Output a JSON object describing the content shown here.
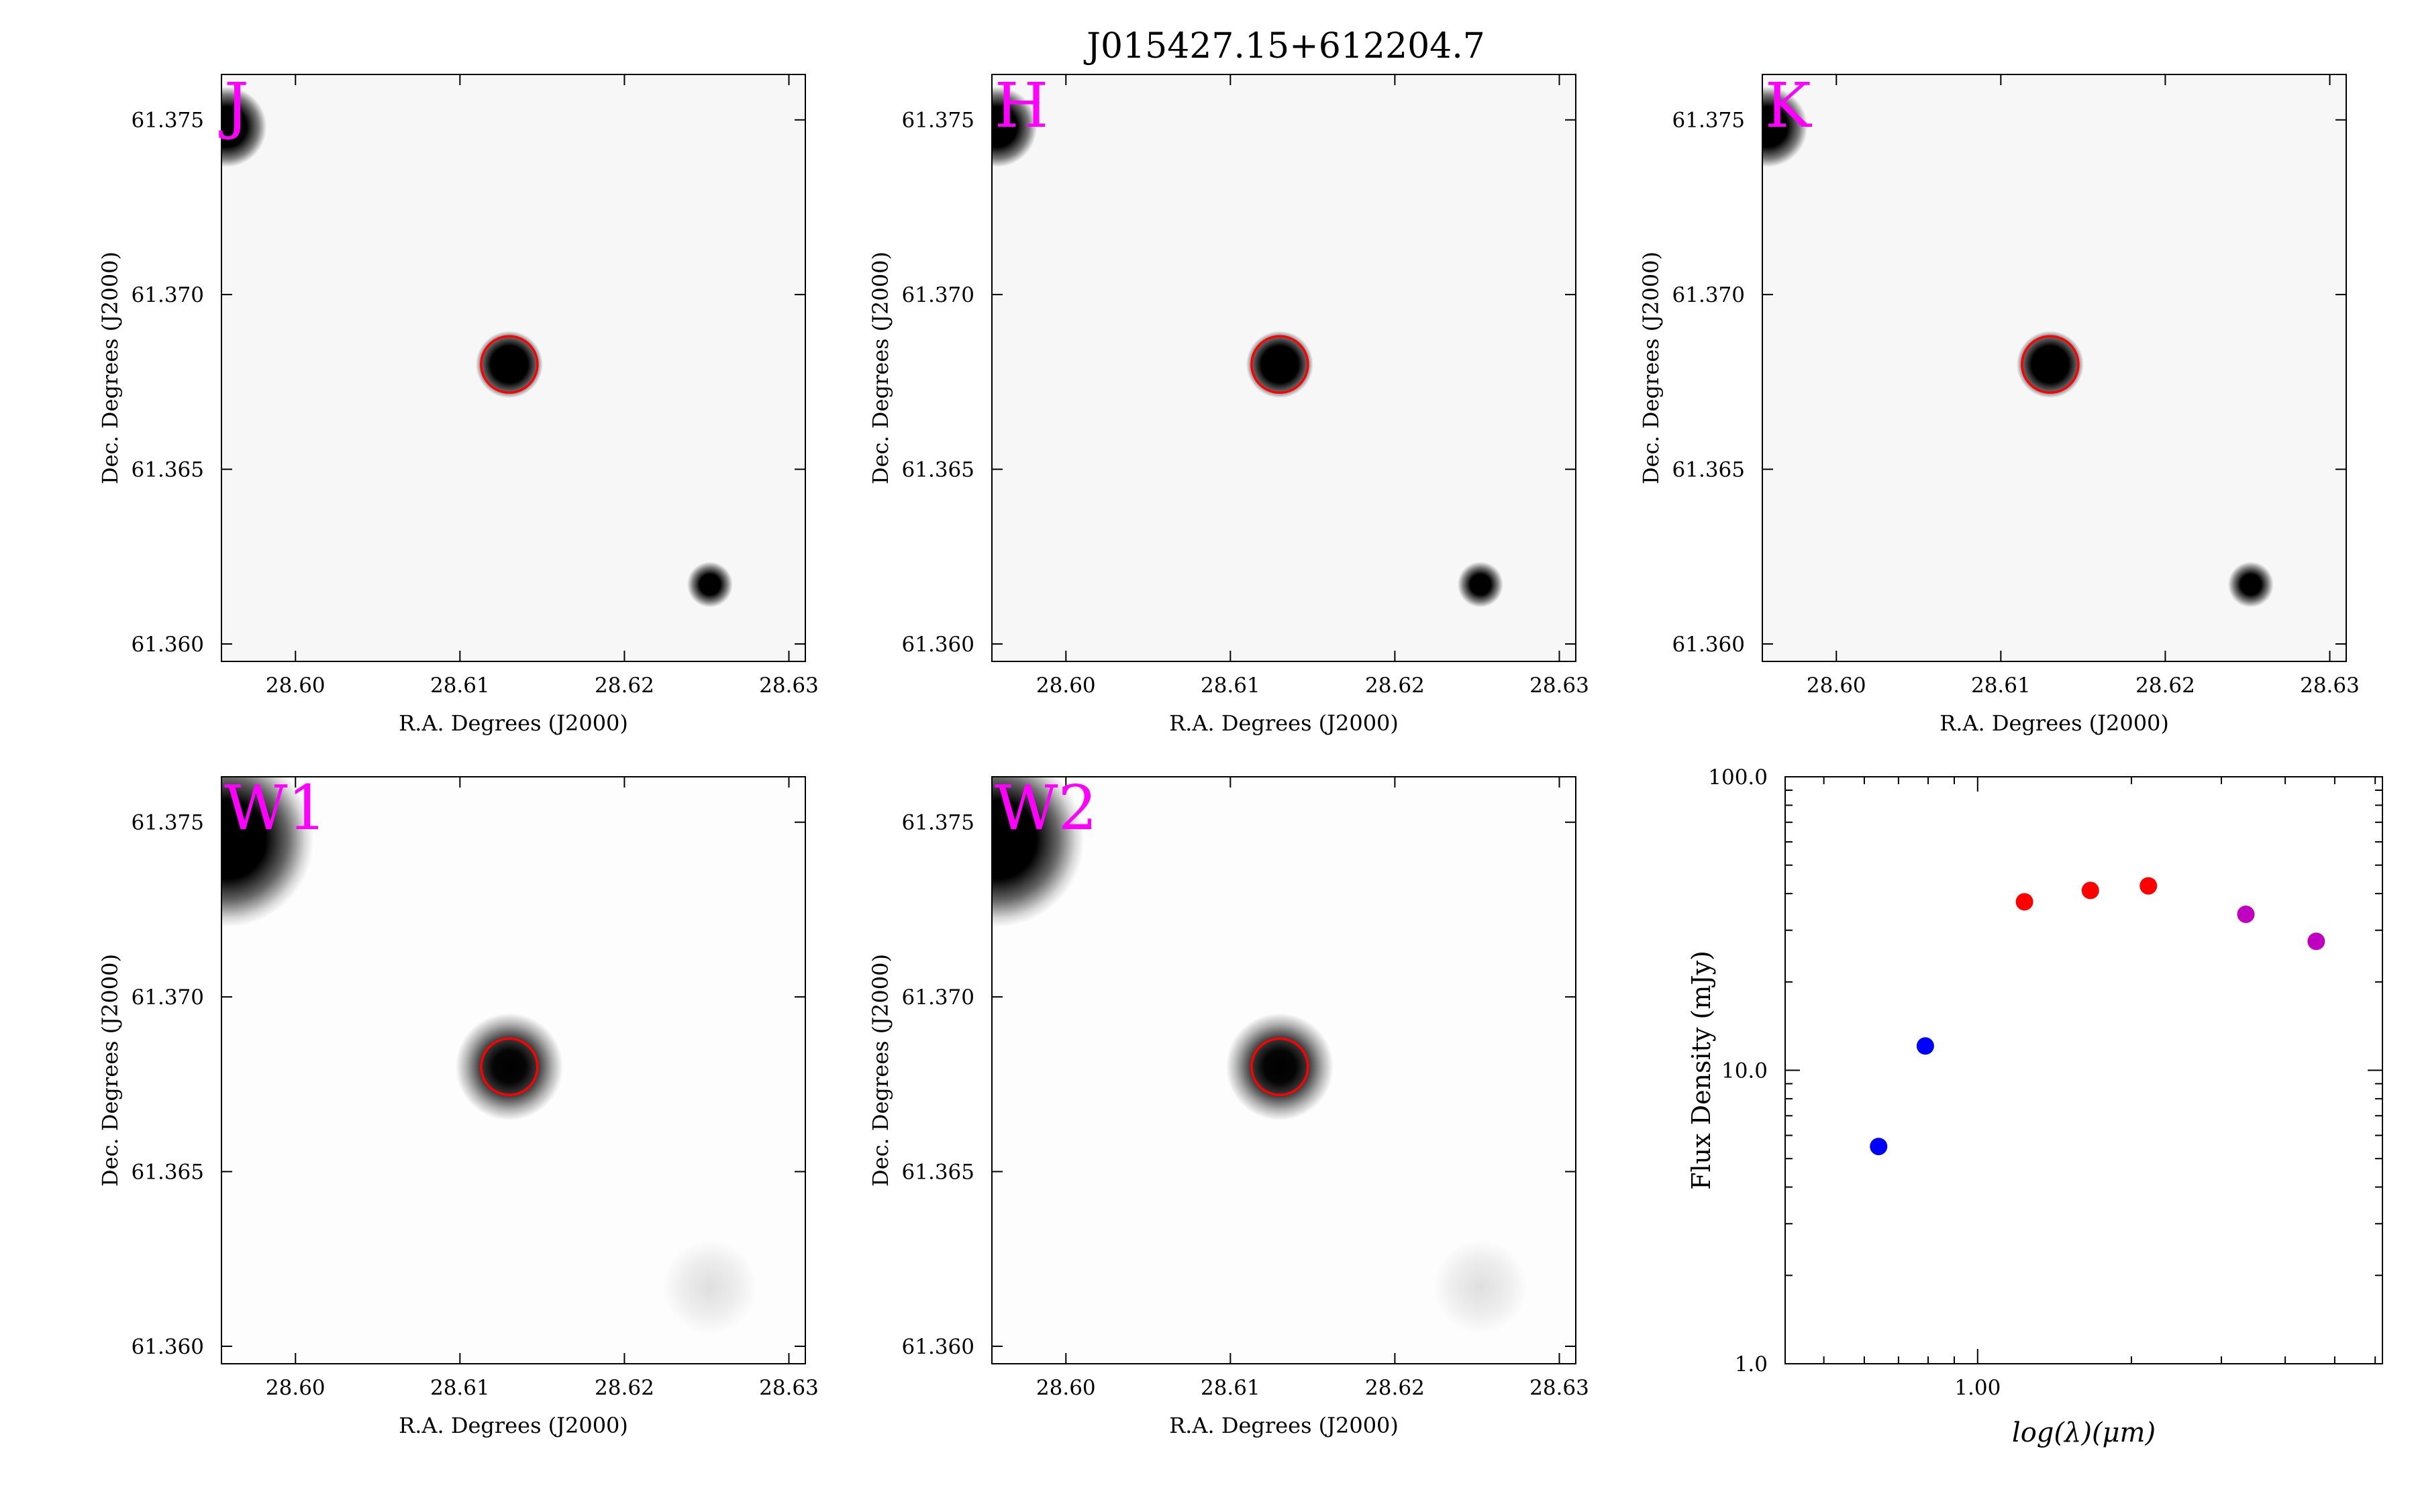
{
  "title": "J015427.15+612204.7",
  "image_axes": {
    "xlabel": "R.A. Degrees (J2000)",
    "ylabel": "Dec. Degrees (J2000)",
    "xticks": [
      "28.60",
      "28.61",
      "28.62",
      "28.63"
    ],
    "xtick_values": [
      28.6,
      28.61,
      28.62,
      28.63
    ],
    "yticks": [
      "61.375",
      "61.370",
      "61.365",
      "61.360"
    ],
    "ytick_values": [
      61.375,
      61.37,
      61.365,
      61.36
    ],
    "xlim": [
      28.5955,
      28.631
    ],
    "ylim": [
      61.3595,
      61.3763
    ]
  },
  "band_color": "#ff00ff",
  "aperture_color": "#ff0000",
  "panels": [
    {
      "band": "J",
      "style": "2mass",
      "sources": [
        {
          "ra": 28.613,
          "dec": 61.368,
          "kind": "target"
        },
        {
          "ra": 28.5958,
          "dec": 61.3748,
          "kind": "corner"
        },
        {
          "ra": 28.6252,
          "dec": 61.3617,
          "kind": "small"
        }
      ]
    },
    {
      "band": "H",
      "style": "2mass",
      "sources": [
        {
          "ra": 28.613,
          "dec": 61.368,
          "kind": "target"
        },
        {
          "ra": 28.5958,
          "dec": 61.3748,
          "kind": "corner"
        },
        {
          "ra": 28.6252,
          "dec": 61.3617,
          "kind": "small"
        }
      ]
    },
    {
      "band": "K",
      "style": "2mass",
      "sources": [
        {
          "ra": 28.613,
          "dec": 61.368,
          "kind": "target"
        },
        {
          "ra": 28.5958,
          "dec": 61.3748,
          "kind": "corner"
        },
        {
          "ra": 28.6252,
          "dec": 61.3617,
          "kind": "small"
        }
      ]
    },
    {
      "band": "W1",
      "style": "wise",
      "sources": [
        {
          "ra": 28.613,
          "dec": 61.368,
          "kind": "target"
        },
        {
          "ra": 28.5958,
          "dec": 61.3745,
          "kind": "corner"
        },
        {
          "ra": 28.6252,
          "dec": 61.3617,
          "kind": "faint"
        }
      ]
    },
    {
      "band": "W2",
      "style": "wise",
      "sources": [
        {
          "ra": 28.613,
          "dec": 61.368,
          "kind": "target"
        },
        {
          "ra": 28.5958,
          "dec": 61.3745,
          "kind": "corner"
        },
        {
          "ra": 28.6252,
          "dec": 61.3617,
          "kind": "faint"
        }
      ]
    }
  ],
  "chart_data": {
    "type": "scatter",
    "xlabel": "log(λ)(μm)",
    "ylabel": "Flux Density (mJy)",
    "xscale": "log",
    "yscale": "log",
    "xlim": [
      0.42,
      6.2
    ],
    "ylim": [
      1.0,
      100.0
    ],
    "xticks": [
      "1.00"
    ],
    "xtick_values": [
      1.0
    ],
    "yticks": [
      "1.0",
      "10.0",
      "100.0"
    ],
    "ytick_values": [
      1.0,
      10.0,
      100.0
    ],
    "points": [
      {
        "x": 0.64,
        "y": 5.5,
        "color": "#0000ff"
      },
      {
        "x": 0.79,
        "y": 12.1,
        "color": "#0000ff"
      },
      {
        "x": 1.235,
        "y": 37.5,
        "color": "#ff0000"
      },
      {
        "x": 1.662,
        "y": 41.0,
        "color": "#ff0000"
      },
      {
        "x": 2.159,
        "y": 42.5,
        "color": "#ff0000"
      },
      {
        "x": 3.35,
        "y": 34.0,
        "color": "#c000c0"
      },
      {
        "x": 4.6,
        "y": 27.5,
        "color": "#c000c0"
      }
    ]
  }
}
